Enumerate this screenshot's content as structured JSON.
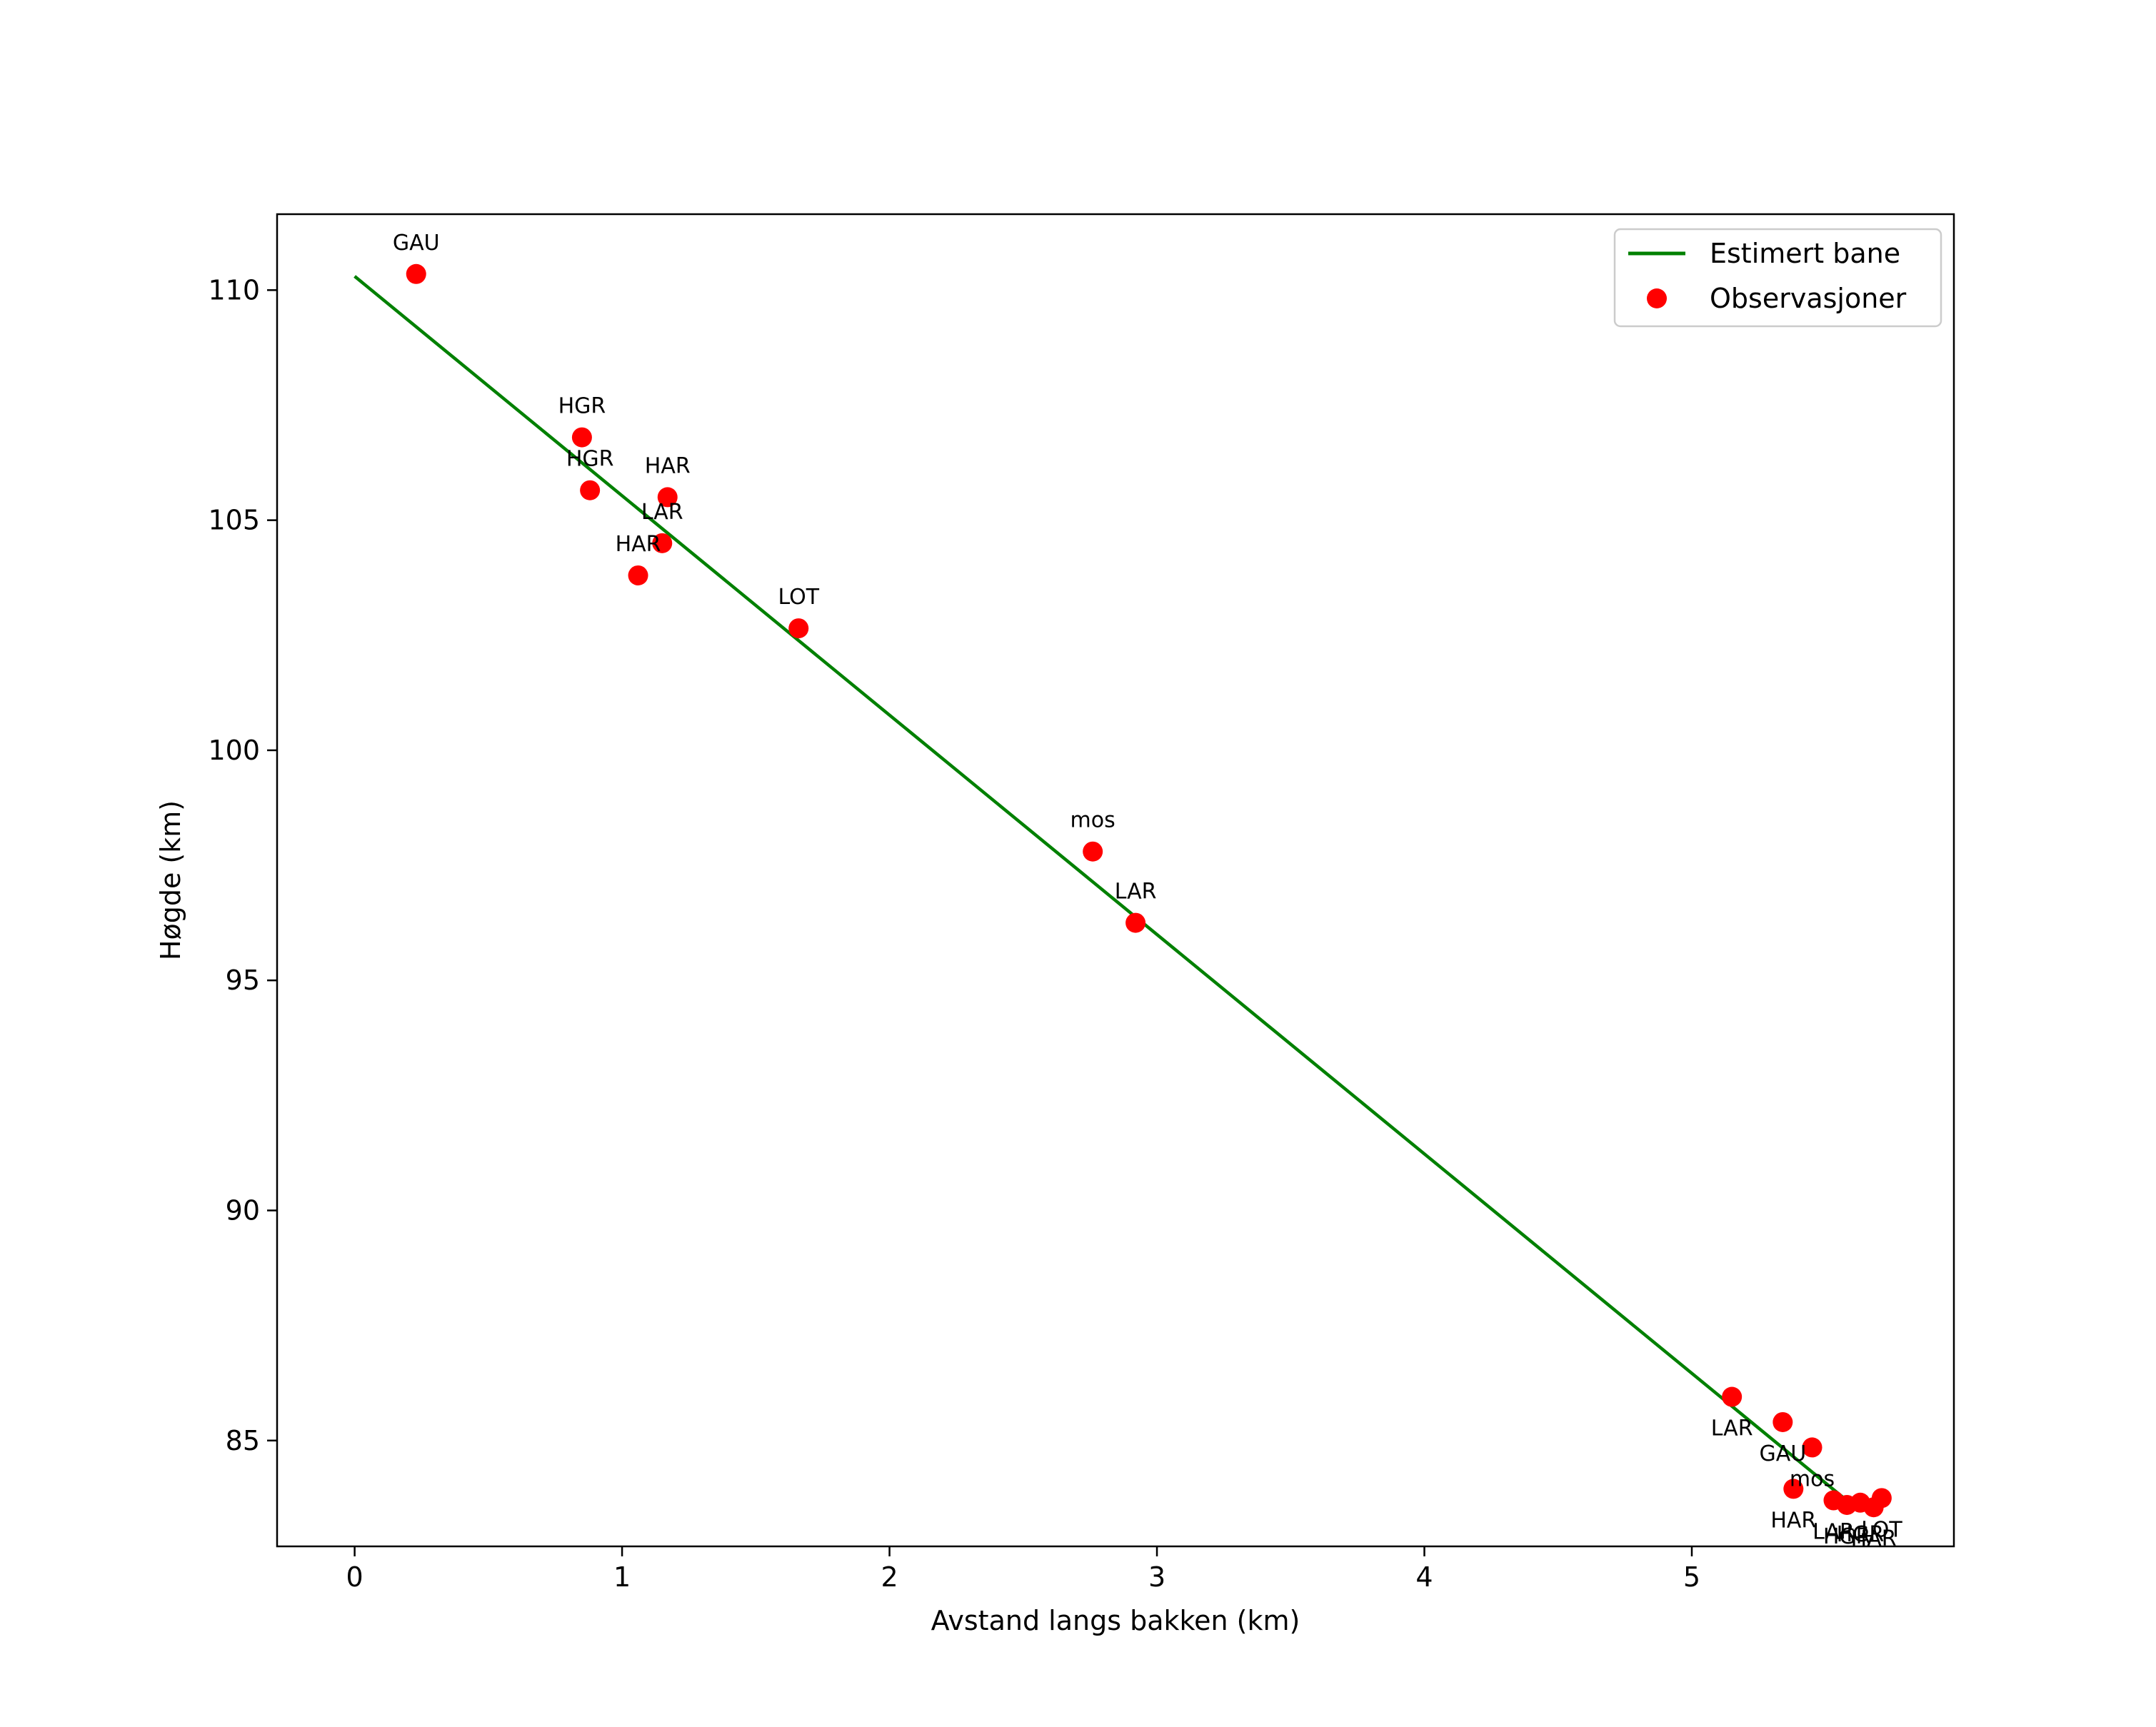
{
  "chart_data": {
    "type": "scatter",
    "title": "",
    "xlabel": "Avstand langs bakken (km)",
    "ylabel": "Høgde (km)",
    "xlim": [
      -0.29,
      5.98
    ],
    "ylim": [
      82.7,
      111.65
    ],
    "xticks": [
      0,
      1,
      2,
      3,
      4,
      5
    ],
    "yticks": [
      85,
      90,
      95,
      100,
      105,
      110
    ],
    "grid": false,
    "legend_position": "top-right",
    "colors": {
      "line": "#008000",
      "points": "#ff0000"
    },
    "series": [
      {
        "name": "Estimert bane",
        "kind": "line",
        "x": [
          0.0,
          5.6
        ],
        "y": [
          110.3,
          83.6
        ]
      },
      {
        "name": "Observasjoner",
        "kind": "scatter",
        "points": [
          {
            "x": 0.23,
            "y": 110.35,
            "label": "GAU",
            "pos": "above"
          },
          {
            "x": 0.85,
            "y": 106.8,
            "label": "HGR",
            "pos": "above"
          },
          {
            "x": 0.88,
            "y": 105.65,
            "label": "HGR",
            "pos": "above"
          },
          {
            "x": 1.17,
            "y": 105.5,
            "label": "HAR",
            "pos": "above"
          },
          {
            "x": 1.15,
            "y": 104.5,
            "label": "LAR",
            "pos": "above"
          },
          {
            "x": 1.06,
            "y": 103.8,
            "label": "HAR",
            "pos": "above"
          },
          {
            "x": 1.66,
            "y": 102.65,
            "label": "LOT",
            "pos": "above"
          },
          {
            "x": 2.76,
            "y": 97.8,
            "label": "mos",
            "pos": "above"
          },
          {
            "x": 2.92,
            "y": 96.25,
            "label": "LAR",
            "pos": "above"
          },
          {
            "x": 5.15,
            "y": 85.95,
            "label": "LAR",
            "pos": "below"
          },
          {
            "x": 5.34,
            "y": 85.4,
            "label": "GAU",
            "pos": "below"
          },
          {
            "x": 5.45,
            "y": 84.85,
            "label": "mos",
            "pos": "below"
          },
          {
            "x": 5.38,
            "y": 83.95,
            "label": "HAR",
            "pos": "below"
          },
          {
            "x": 5.53,
            "y": 83.7,
            "label": "LAR",
            "pos": "below"
          },
          {
            "x": 5.58,
            "y": 83.6,
            "label": "HGR",
            "pos": "below"
          },
          {
            "x": 5.63,
            "y": 83.65,
            "label": "HGR",
            "pos": "below"
          },
          {
            "x": 5.71,
            "y": 83.75,
            "label": "LOT",
            "pos": "below"
          },
          {
            "x": 5.68,
            "y": 83.55,
            "label": "HAR",
            "pos": "below"
          }
        ]
      }
    ]
  }
}
